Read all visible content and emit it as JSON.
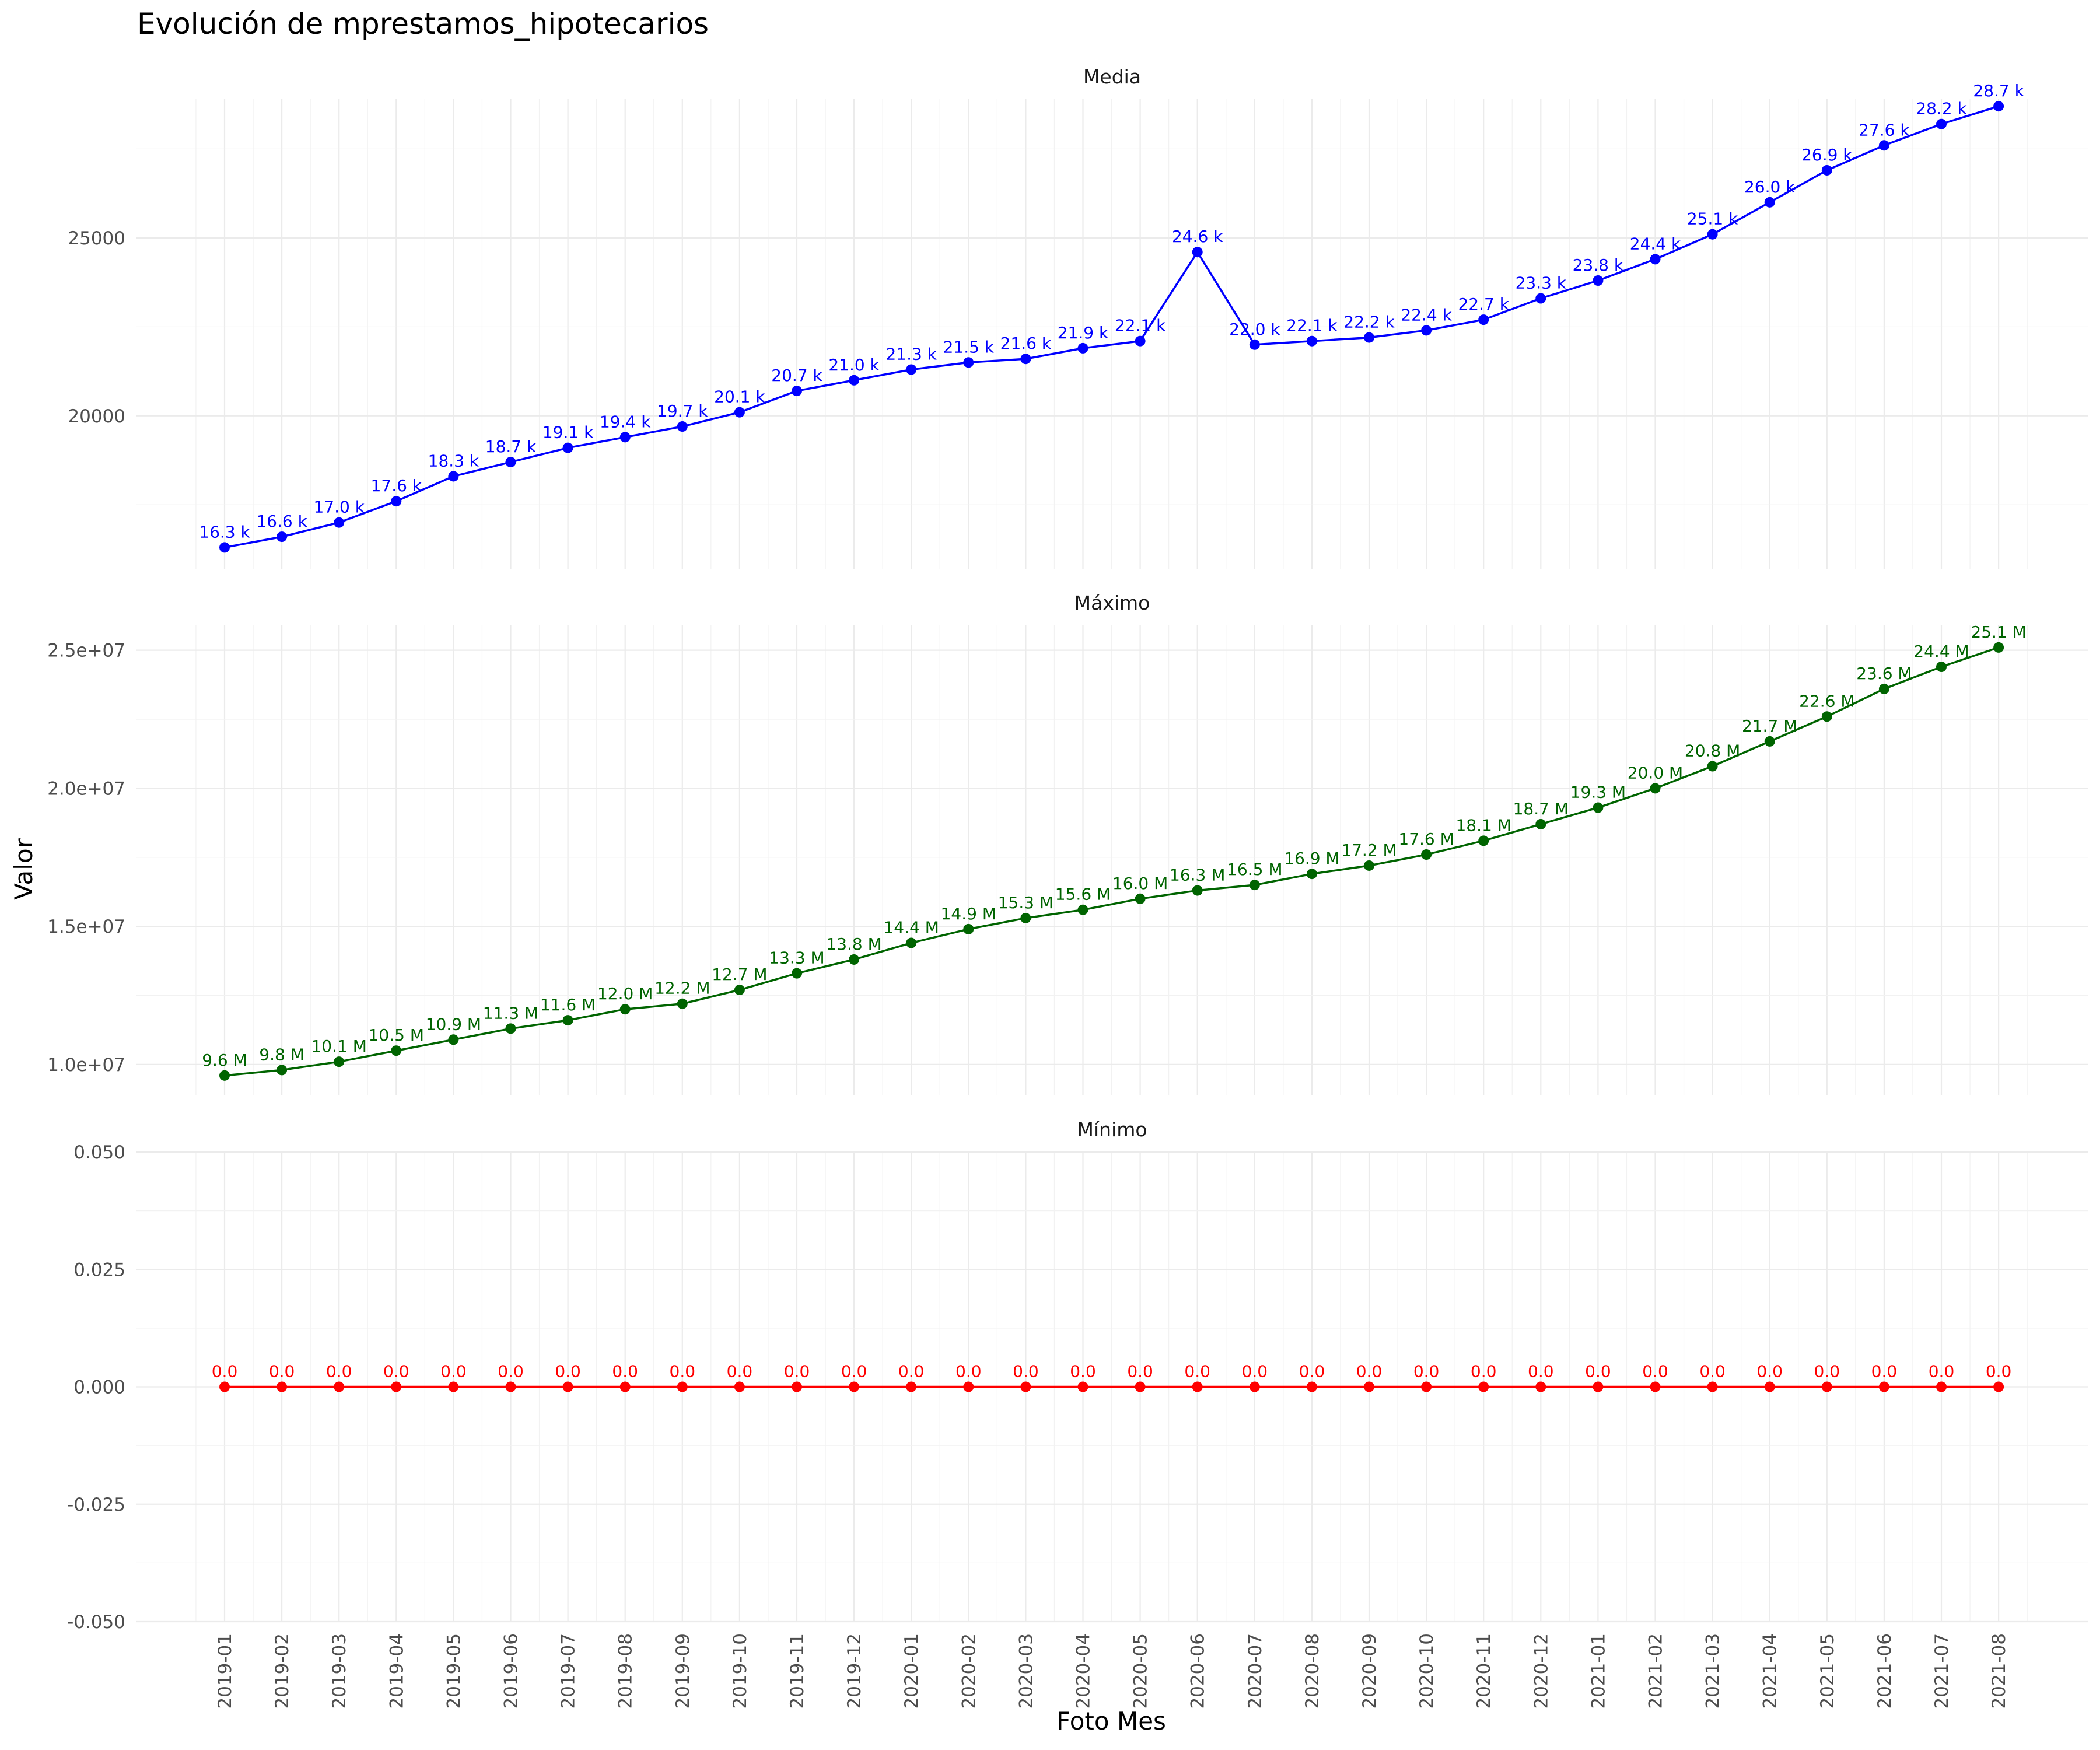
{
  "title": "Evolución de mprestamos_hipotecarios",
  "xlabel": "Foto Mes",
  "ylabel": "Valor",
  "x_categories": [
    "2019-01",
    "2019-02",
    "2019-03",
    "2019-04",
    "2019-05",
    "2019-06",
    "2019-07",
    "2019-08",
    "2019-09",
    "2019-10",
    "2019-11",
    "2019-12",
    "2020-01",
    "2020-02",
    "2020-03",
    "2020-04",
    "2020-05",
    "2020-06",
    "2020-07",
    "2020-08",
    "2020-09",
    "2020-10",
    "2020-11",
    "2020-12",
    "2021-01",
    "2021-02",
    "2021-03",
    "2021-04",
    "2021-05",
    "2021-06",
    "2021-07",
    "2021-08"
  ],
  "chart_data": [
    {
      "type": "line",
      "facet": "Media",
      "color": "#0000ff",
      "ylim": [
        15700,
        28900
      ],
      "yticks": [
        20000,
        25000
      ],
      "ytick_labels": [
        "20000",
        "25000"
      ],
      "values": [
        16300,
        16600,
        17000,
        17600,
        18300,
        18700,
        19100,
        19400,
        19700,
        20100,
        20700,
        21000,
        21300,
        21500,
        21600,
        21900,
        22100,
        24600,
        22000,
        22100,
        22200,
        22400,
        22700,
        23300,
        23800,
        24400,
        25100,
        26000,
        26900,
        27600,
        28200,
        28700
      ],
      "labels": [
        "16.3 k",
        "16.6 k",
        "17.0 k",
        "17.6 k",
        "18.3 k",
        "18.7 k",
        "19.1 k",
        "19.4 k",
        "19.7 k",
        "20.1 k",
        "20.7 k",
        "21.0 k",
        "21.3 k",
        "21.5 k",
        "21.6 k",
        "21.9 k",
        "22.1 k",
        "24.6 k",
        "22.0 k",
        "22.1 k",
        "22.2 k",
        "22.4 k",
        "22.7 k",
        "23.3 k",
        "23.8 k",
        "24.4 k",
        "25.1 k",
        "26.0 k",
        "26.9 k",
        "27.6 k",
        "28.2 k",
        "28.7 k"
      ]
    },
    {
      "type": "line",
      "facet": "Máximo",
      "color": "#006400",
      "ylim": [
        8900000,
        25900000
      ],
      "yticks": [
        10000000,
        15000000,
        20000000,
        25000000
      ],
      "ytick_labels": [
        "1.0e+07",
        "1.5e+07",
        "2.0e+07",
        "2.5e+07"
      ],
      "values": [
        9600000,
        9800000,
        10100000,
        10500000,
        10900000,
        11300000,
        11600000,
        12000000,
        12200000,
        12700000,
        13300000,
        13800000,
        14400000,
        14900000,
        15300000,
        15600000,
        16000000,
        16300000,
        16500000,
        16900000,
        17200000,
        17600000,
        18100000,
        18700000,
        19300000,
        20000000,
        20800000,
        21700000,
        22600000,
        23600000,
        24400000,
        25100000
      ],
      "labels": [
        "9.6 M",
        "9.8 M",
        "10.1 M",
        "10.5 M",
        "10.9 M",
        "11.3 M",
        "11.6 M",
        "12.0 M",
        "12.2 M",
        "12.7 M",
        "13.3 M",
        "13.8 M",
        "14.4 M",
        "14.9 M",
        "15.3 M",
        "15.6 M",
        "16.0 M",
        "16.3 M",
        "16.5 M",
        "16.9 M",
        "17.2 M",
        "17.6 M",
        "18.1 M",
        "18.7 M",
        "19.3 M",
        "20.0 M",
        "20.8 M",
        "21.7 M",
        "22.6 M",
        "23.6 M",
        "24.4 M",
        "25.1 M"
      ]
    },
    {
      "type": "line",
      "facet": "Mínimo",
      "color": "#ff0000",
      "ylim": [
        -0.05,
        0.05
      ],
      "yticks": [
        -0.05,
        -0.025,
        0,
        0.025,
        0.05
      ],
      "ytick_labels": [
        "-0.050",
        "-0.025",
        "0.000",
        "0.025",
        "0.050"
      ],
      "values": [
        0,
        0,
        0,
        0,
        0,
        0,
        0,
        0,
        0,
        0,
        0,
        0,
        0,
        0,
        0,
        0,
        0,
        0,
        0,
        0,
        0,
        0,
        0,
        0,
        0,
        0,
        0,
        0,
        0,
        0,
        0,
        0
      ],
      "labels": [
        "0.0",
        "0.0",
        "0.0",
        "0.0",
        "0.0",
        "0.0",
        "0.0",
        "0.0",
        "0.0",
        "0.0",
        "0.0",
        "0.0",
        "0.0",
        "0.0",
        "0.0",
        "0.0",
        "0.0",
        "0.0",
        "0.0",
        "0.0",
        "0.0",
        "0.0",
        "0.0",
        "0.0",
        "0.0",
        "0.0",
        "0.0",
        "0.0",
        "0.0",
        "0.0",
        "0.0",
        "0.0"
      ]
    }
  ]
}
